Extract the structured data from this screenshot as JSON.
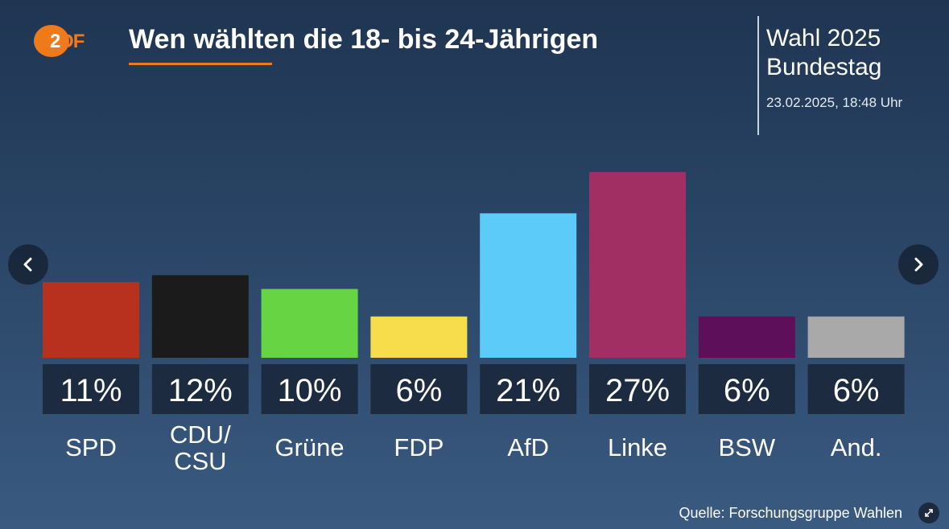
{
  "header": {
    "brand": "ZDF",
    "brand_z": "2",
    "brand_df": "DF",
    "title": "Wen wählten die 18- bis 24-Jährigen",
    "side_title_line1": "Wahl 2025",
    "side_title_line2": "Bundestag",
    "date": "23.02.2025, 18:48 Uhr"
  },
  "chart_data": {
    "type": "bar",
    "title": "Wen wählten die 18- bis 24-Jährigen",
    "xlabel": "",
    "ylabel": "",
    "ylim": [
      0,
      30
    ],
    "unit": "%",
    "categories": [
      "SPD",
      "CDU/\nCSU",
      "Grüne",
      "FDP",
      "AfD",
      "Linke",
      "BSW",
      "And."
    ],
    "values": [
      11,
      12,
      10,
      6,
      21,
      27,
      6,
      6
    ],
    "value_labels": [
      "11%",
      "12%",
      "10%",
      "6%",
      "21%",
      "27%",
      "6%",
      "6%"
    ],
    "colors": [
      "#b8311f",
      "#1b1b1b",
      "#67d444",
      "#f7dd4b",
      "#5ccbf9",
      "#a12f64",
      "#5e0f5a",
      "#a9a9a9"
    ]
  },
  "navigation": {
    "prev_icon": "chevron-left-icon",
    "next_icon": "chevron-right-icon"
  },
  "footer": {
    "source": "Quelle: Forschungsgruppe Wahlen",
    "expand_icon": "expand-icon"
  }
}
